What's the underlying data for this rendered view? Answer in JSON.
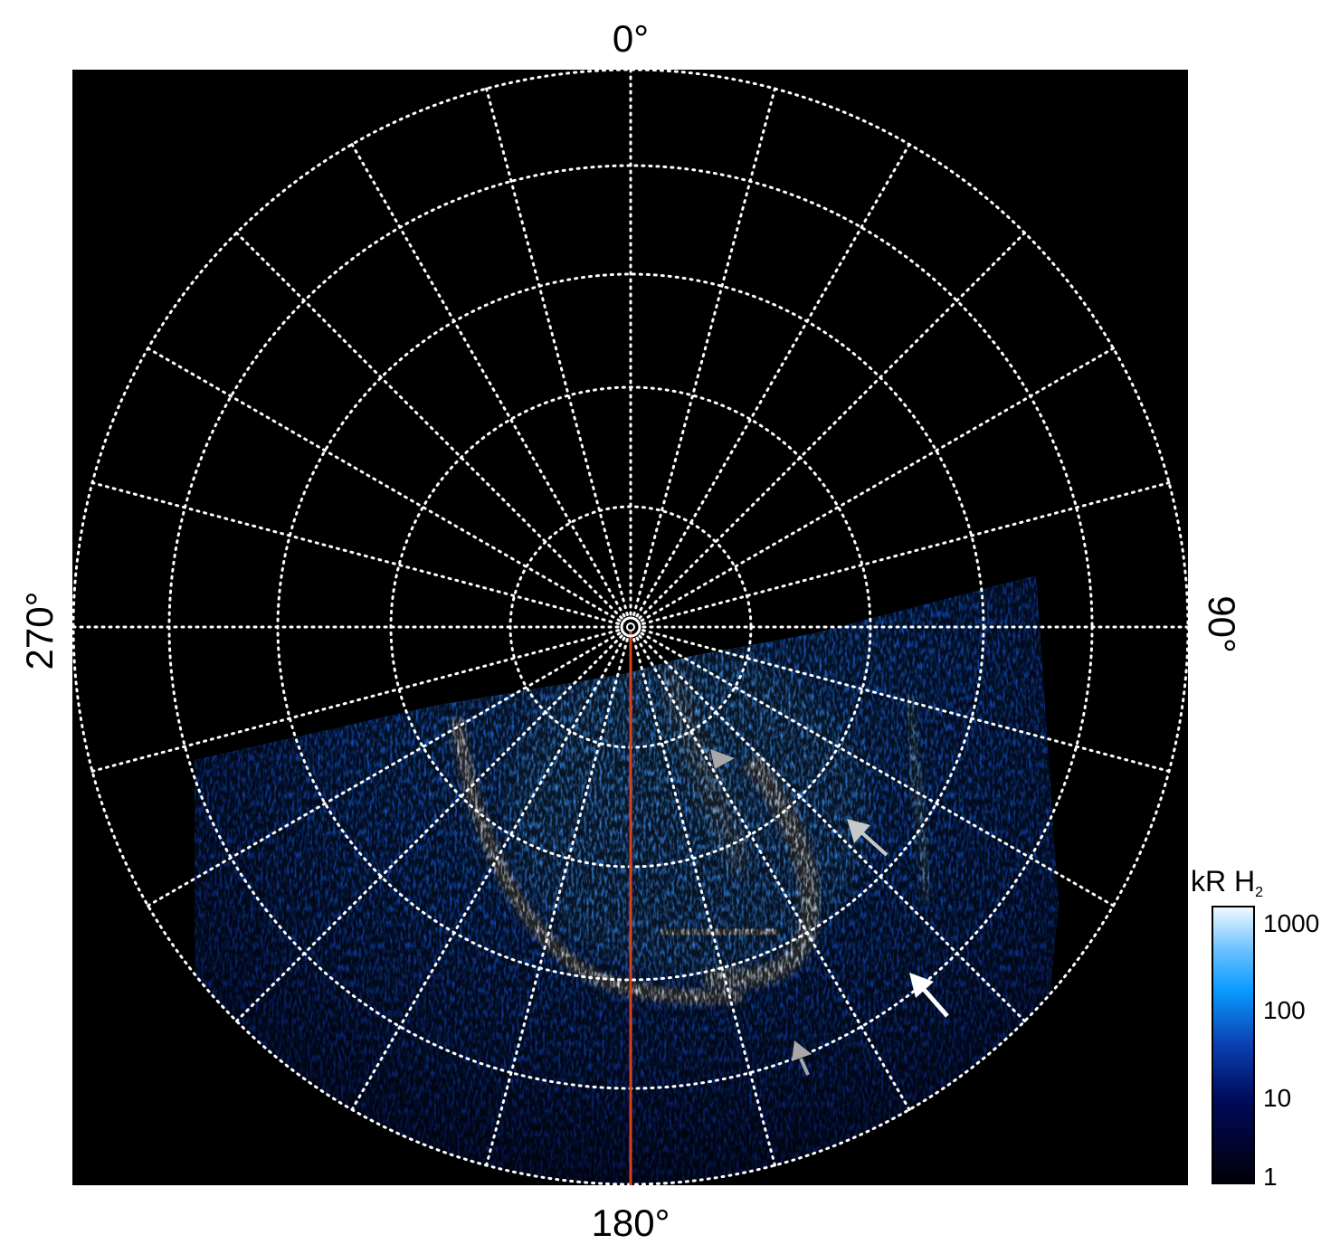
{
  "axis_labels": {
    "top": "0°",
    "right": "90°",
    "bottom": "180°",
    "left": "270°"
  },
  "colorbar": {
    "unit": "kR H",
    "unit_subscript": "2",
    "ticks": [
      "1000",
      "100",
      "10",
      "1"
    ],
    "scale": "log",
    "range": [
      1,
      1000
    ]
  },
  "colors": {
    "background": "#000000",
    "grid": "#ffffff",
    "reference_line": "#d9411e",
    "emission_low": "#000010",
    "emission_mid": "#0a4fd8",
    "emission_high": "#e8f4ff",
    "arrow_gray": "#a8a8a8",
    "arrow_white": "#ffffff"
  },
  "grid": {
    "longitude_step_deg": 15,
    "latitude_rings": 5
  }
}
